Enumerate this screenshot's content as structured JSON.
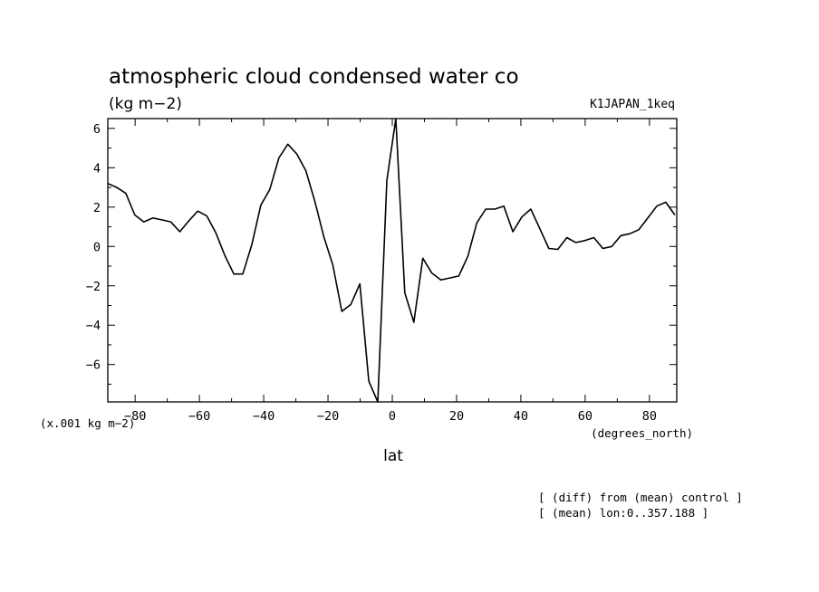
{
  "chart_data": {
    "type": "line",
    "title": "atmospheric cloud condensed water co",
    "units": "(kg m−2)",
    "run_label": "K1JAPAN_1keq",
    "xlabel": "lat",
    "x_unit_label": "(degrees_north)",
    "y_scale_label": "(x.001 kg m−2)",
    "footnotes": [
      "[ (diff) from (mean) control ]",
      "[ (mean) lon:0..357.188 ]"
    ],
    "xlim": [
      -88.5,
      88.5
    ],
    "ylim": [
      -7.9,
      6.5
    ],
    "x_ticks": [
      -80,
      -60,
      -40,
      -20,
      0,
      20,
      40,
      60,
      80
    ],
    "x_tick_labels": [
      "−80",
      "−60",
      "−40",
      "−20",
      "0",
      "20",
      "40",
      "60",
      "80"
    ],
    "y_ticks": [
      -6,
      -4,
      -2,
      0,
      2,
      4,
      6
    ],
    "y_tick_labels": [
      "−6",
      "−4",
      "−2",
      "0",
      "2",
      "4",
      "6"
    ],
    "series": [
      {
        "name": "diff",
        "x": [
          -88.5,
          -85.7,
          -82.9,
          -80.1,
          -77.3,
          -74.5,
          -71.7,
          -68.9,
          -66.1,
          -63.3,
          -60.5,
          -57.7,
          -54.9,
          -52.1,
          -49.3,
          -46.5,
          -43.7,
          -40.9,
          -38.1,
          -35.3,
          -32.5,
          -29.7,
          -26.9,
          -24.1,
          -21.3,
          -18.5,
          -15.7,
          -12.9,
          -10.1,
          -7.3,
          -4.5,
          -1.7,
          1.1,
          3.9,
          6.7,
          9.5,
          12.3,
          15.1,
          17.9,
          20.7,
          23.5,
          26.3,
          29.1,
          31.9,
          34.7,
          37.5,
          40.3,
          43.1,
          45.9,
          48.7,
          51.5,
          54.3,
          57.1,
          59.9,
          62.7,
          65.5,
          68.3,
          71.1,
          73.9,
          76.7,
          79.5,
          82.3,
          85.1,
          87.9
        ],
        "y": [
          3.2,
          3.0,
          2.7,
          1.6,
          1.25,
          1.45,
          1.35,
          1.25,
          0.75,
          1.3,
          1.8,
          1.55,
          0.7,
          -0.45,
          -1.4,
          -1.4,
          0.1,
          2.1,
          2.9,
          4.5,
          5.2,
          4.7,
          3.85,
          2.3,
          0.5,
          -0.95,
          -3.3,
          -2.95,
          -1.9,
          -6.85,
          -7.9,
          3.35,
          6.5,
          -2.35,
          -3.85,
          -0.6,
          -1.35,
          -1.7,
          -1.6,
          -1.5,
          -0.5,
          1.2,
          1.9,
          1.9,
          2.05,
          0.75,
          1.5,
          1.9,
          0.9,
          -0.1,
          -0.15,
          0.45,
          0.2,
          0.3,
          0.45,
          -0.1,
          0.0,
          0.55,
          0.65,
          0.85,
          1.45,
          2.05,
          2.25,
          1.6
        ]
      }
    ]
  }
}
